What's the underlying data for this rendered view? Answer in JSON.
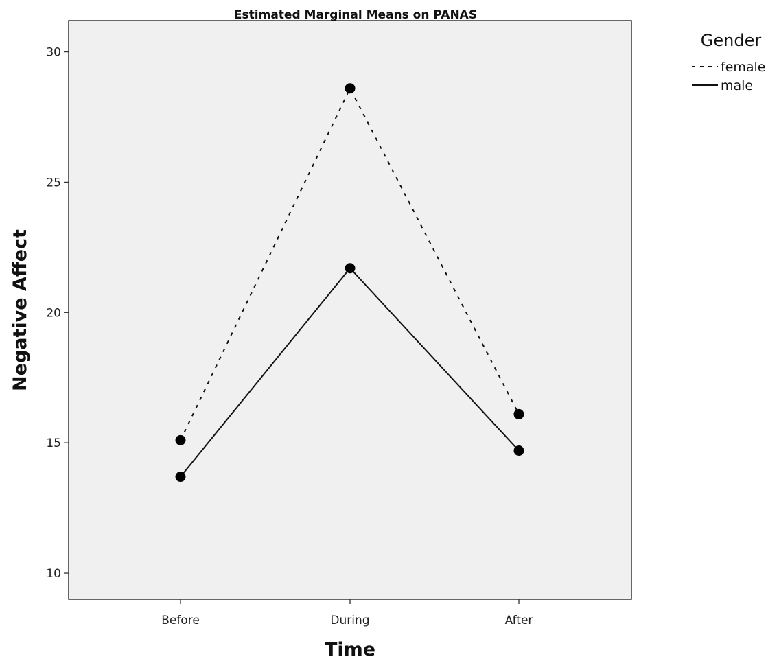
{
  "chart_data": {
    "type": "line",
    "title": "Estimated Marginal Means on PANAS",
    "xlabel": "Time",
    "ylabel": "Negative Affect",
    "categories": [
      "Before",
      "During",
      "After"
    ],
    "ylim": [
      9,
      31.2
    ],
    "yticks": [
      10,
      15,
      20,
      25,
      30
    ],
    "grid": false,
    "legend": {
      "title": "Gender",
      "placement": "top-right, outside plot"
    },
    "series": [
      {
        "name": "female",
        "style": "dotted",
        "color": "#111111",
        "values": [
          15.1,
          28.6,
          16.1
        ]
      },
      {
        "name": "male",
        "style": "solid",
        "color": "#111111",
        "values": [
          13.7,
          21.7,
          14.7
        ]
      }
    ],
    "colors": {
      "plot_background": "#f0f0f0",
      "frame": "#333333"
    }
  }
}
